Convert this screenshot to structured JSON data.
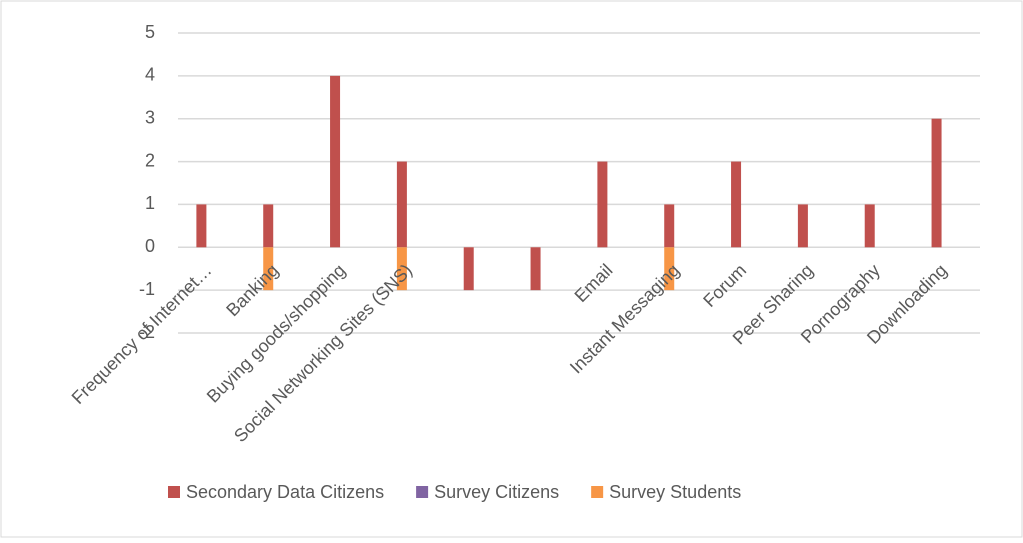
{
  "chart_data": {
    "type": "bar",
    "categories": [
      "Frequency of Internet…",
      "Banking",
      "Buying goods/shopping",
      "Social Networking Sites (SNS)",
      null,
      null,
      "Email",
      "Instant Messaging",
      "Forum",
      "Peer Sharing",
      "Pornography",
      "Downloading"
    ],
    "series": [
      {
        "name": "Secondary Data Citizens",
        "color": "#c0504d",
        "values": [
          1,
          1,
          4,
          2,
          -1,
          -1,
          2,
          1,
          2,
          1,
          1,
          3
        ]
      },
      {
        "name": "Survey Citizens",
        "color": "#8064a2",
        "values": [
          0,
          0,
          0,
          0,
          0,
          0,
          0,
          0,
          0,
          0,
          0,
          0
        ]
      },
      {
        "name": "Survey Students",
        "color": "#f79646",
        "values": [
          0,
          -1,
          0,
          -1,
          0,
          0,
          0,
          -1,
          0,
          0,
          0,
          0
        ]
      }
    ],
    "ylim": [
      -2,
      5
    ],
    "yticks": [
      -2,
      -1,
      0,
      1,
      2,
      3,
      4,
      5
    ],
    "grid": true,
    "legend": "bottom"
  }
}
